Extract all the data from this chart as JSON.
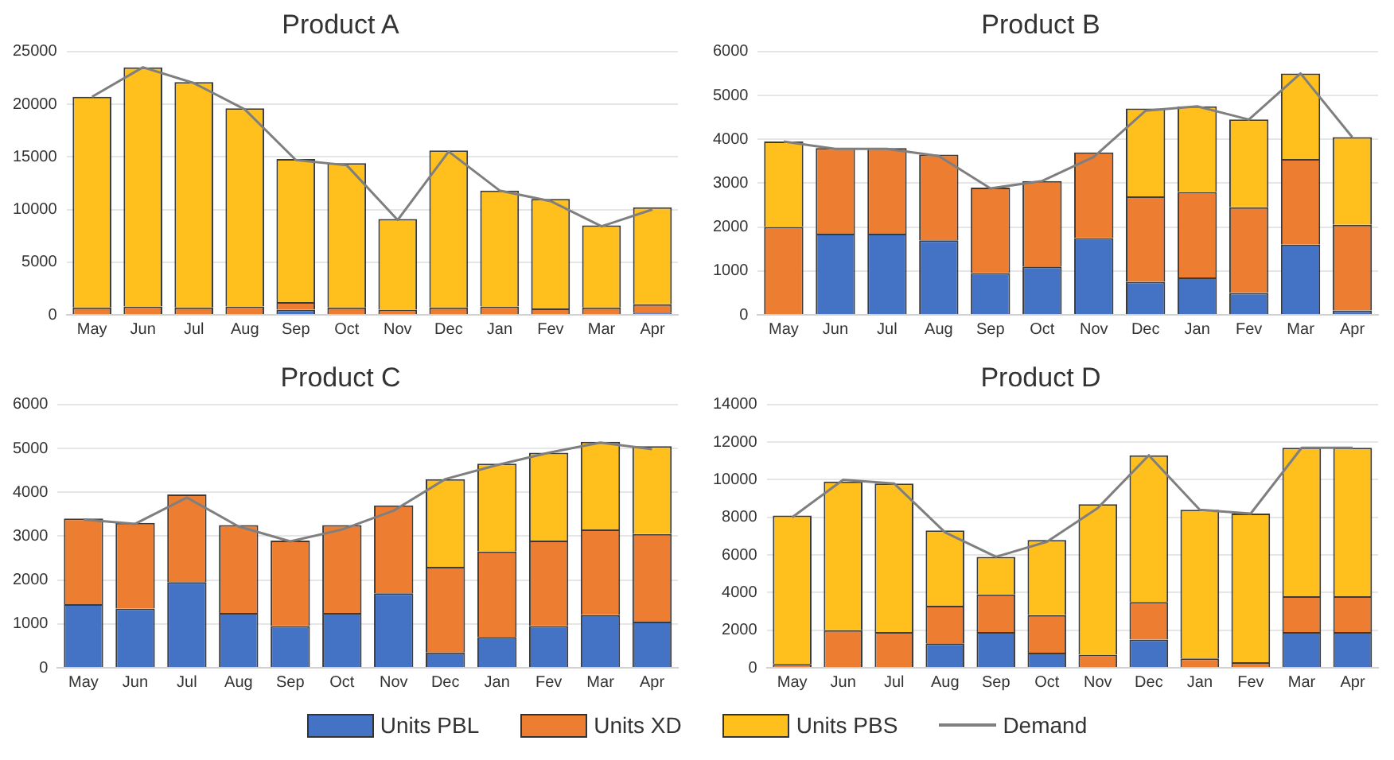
{
  "chart_data": [
    {
      "type": "bar",
      "title": "Product A",
      "stacked": true,
      "categories": [
        "May",
        "Jun",
        "Jul",
        "Aug",
        "Sep",
        "Oct",
        "Nov",
        "Dec",
        "Jan",
        "Fev",
        "Mar",
        "Apr"
      ],
      "ylim": [
        0,
        25000
      ],
      "yticks": [
        0,
        5000,
        10000,
        15000,
        20000,
        25000
      ],
      "grid": "y",
      "marker": "none",
      "series": [
        {
          "color": "#4472c4",
          "values": [
            0,
            null,
            0,
            null,
            500,
            0,
            0,
            0,
            null,
            0,
            0,
            200
          ]
        },
        {
          "color": "#ed7d31",
          "values": [
            700,
            800,
            700,
            800,
            700,
            700,
            500,
            700,
            800,
            600,
            700,
            800
          ]
        },
        {
          "color": "#ffc01e",
          "values": [
            20000,
            22700,
            21400,
            18800,
            13600,
            13700,
            8600,
            14900,
            11000,
            10400,
            7800,
            9200
          ]
        },
        {
          "type": "line",
          "color": "#7f7f7f",
          "values": [
            20700,
            23500,
            22000,
            19500,
            14700,
            14200,
            9000,
            15500,
            11800,
            10800,
            8400,
            10000
          ]
        }
      ]
    },
    {
      "type": "bar",
      "title": "Product B",
      "stacked": true,
      "categories": [
        "May",
        "Jun",
        "Jul",
        "Aug",
        "Sep",
        "Oct",
        "Nov",
        "Dec",
        "Jan",
        "Fev",
        "Mar",
        "Apr"
      ],
      "ylim": [
        0,
        6000
      ],
      "yticks": [
        0,
        1000,
        2000,
        3000,
        4000,
        5000,
        6000
      ],
      "grid": "y",
      "marker": "none",
      "series": [
        {
          "color": "#4472c4",
          "values": [
            0,
            1850,
            1850,
            1700,
            950,
            1100,
            1750,
            750,
            850,
            500,
            1600,
            100
          ]
        },
        {
          "color": "#ed7d31",
          "values": [
            2000,
            1950,
            1950,
            1950,
            1950,
            1950,
            1950,
            1950,
            1950,
            1950,
            1950,
            1950
          ]
        },
        {
          "color": "#ffc01e",
          "values": [
            1950,
            0,
            0,
            0,
            0,
            0,
            0,
            2000,
            1950,
            2000,
            1950,
            2000
          ]
        },
        {
          "type": "line",
          "color": "#7f7f7f",
          "values": [
            3950,
            3780,
            3780,
            3620,
            2880,
            3050,
            3600,
            4650,
            4750,
            4450,
            5500,
            4050
          ]
        }
      ]
    },
    {
      "type": "bar",
      "title": "Product C",
      "stacked": true,
      "categories": [
        "May",
        "Jun",
        "Jul",
        "Aug",
        "Sep",
        "Oct",
        "Nov",
        "Dec",
        "Jan",
        "Fev",
        "Mar",
        "Apr"
      ],
      "ylim": [
        0,
        6000
      ],
      "yticks": [
        0,
        1000,
        2000,
        3000,
        4000,
        5000,
        6000
      ],
      "grid": "y",
      "marker": "none",
      "series": [
        {
          "color": "#4472c4",
          "values": [
            1450,
            1350,
            1950,
            1250,
            950,
            1250,
            1700,
            350,
            700,
            950,
            1200,
            1050
          ]
        },
        {
          "color": "#ed7d31",
          "values": [
            1950,
            1950,
            2000,
            2000,
            1950,
            2000,
            2000,
            1950,
            1950,
            1950,
            1950,
            2000
          ]
        },
        {
          "color": "#ffc01e",
          "values": [
            0,
            0,
            0,
            0,
            0,
            0,
            0,
            2000,
            2000,
            2000,
            2000,
            2000
          ]
        },
        {
          "type": "line",
          "color": "#7f7f7f",
          "values": [
            3380,
            3280,
            3880,
            3220,
            2880,
            3150,
            3580,
            4300,
            4620,
            4900,
            5130,
            4980
          ]
        }
      ]
    },
    {
      "type": "bar",
      "title": "Product D",
      "stacked": true,
      "categories": [
        "May",
        "Jun",
        "Jul",
        "Aug",
        "Sep",
        "Oct",
        "Nov",
        "Dec",
        "Jan",
        "Fev",
        "Mar",
        "Apr"
      ],
      "ylim": [
        0,
        14000
      ],
      "yticks": [
        0,
        2000,
        4000,
        6000,
        8000,
        10000,
        12000,
        14000
      ],
      "grid": "y",
      "legend": "bottom",
      "marker": "none",
      "series": [
        {
          "name": "Units PBL",
          "color": "#4472c4",
          "values": [
            0,
            null,
            0,
            1300,
            1900,
            800,
            0,
            1500,
            0,
            0,
            1900,
            1900
          ]
        },
        {
          "name": "Units XD",
          "color": "#ed7d31",
          "values": [
            200,
            2000,
            1900,
            2000,
            2000,
            2000,
            700,
            2000,
            500,
            300,
            1900,
            1900
          ]
        },
        {
          "name": "Units PBS",
          "color": "#ffc01e",
          "values": [
            7900,
            7900,
            7900,
            4000,
            2000,
            4000,
            8000,
            7800,
            7900,
            7900,
            7900,
            7900
          ]
        },
        {
          "name": "Demand",
          "type": "line",
          "color": "#7f7f7f",
          "values": [
            8000,
            10000,
            9800,
            7200,
            5900,
            6700,
            8500,
            11300,
            8400,
            8200,
            11700,
            11700
          ]
        }
      ]
    }
  ]
}
